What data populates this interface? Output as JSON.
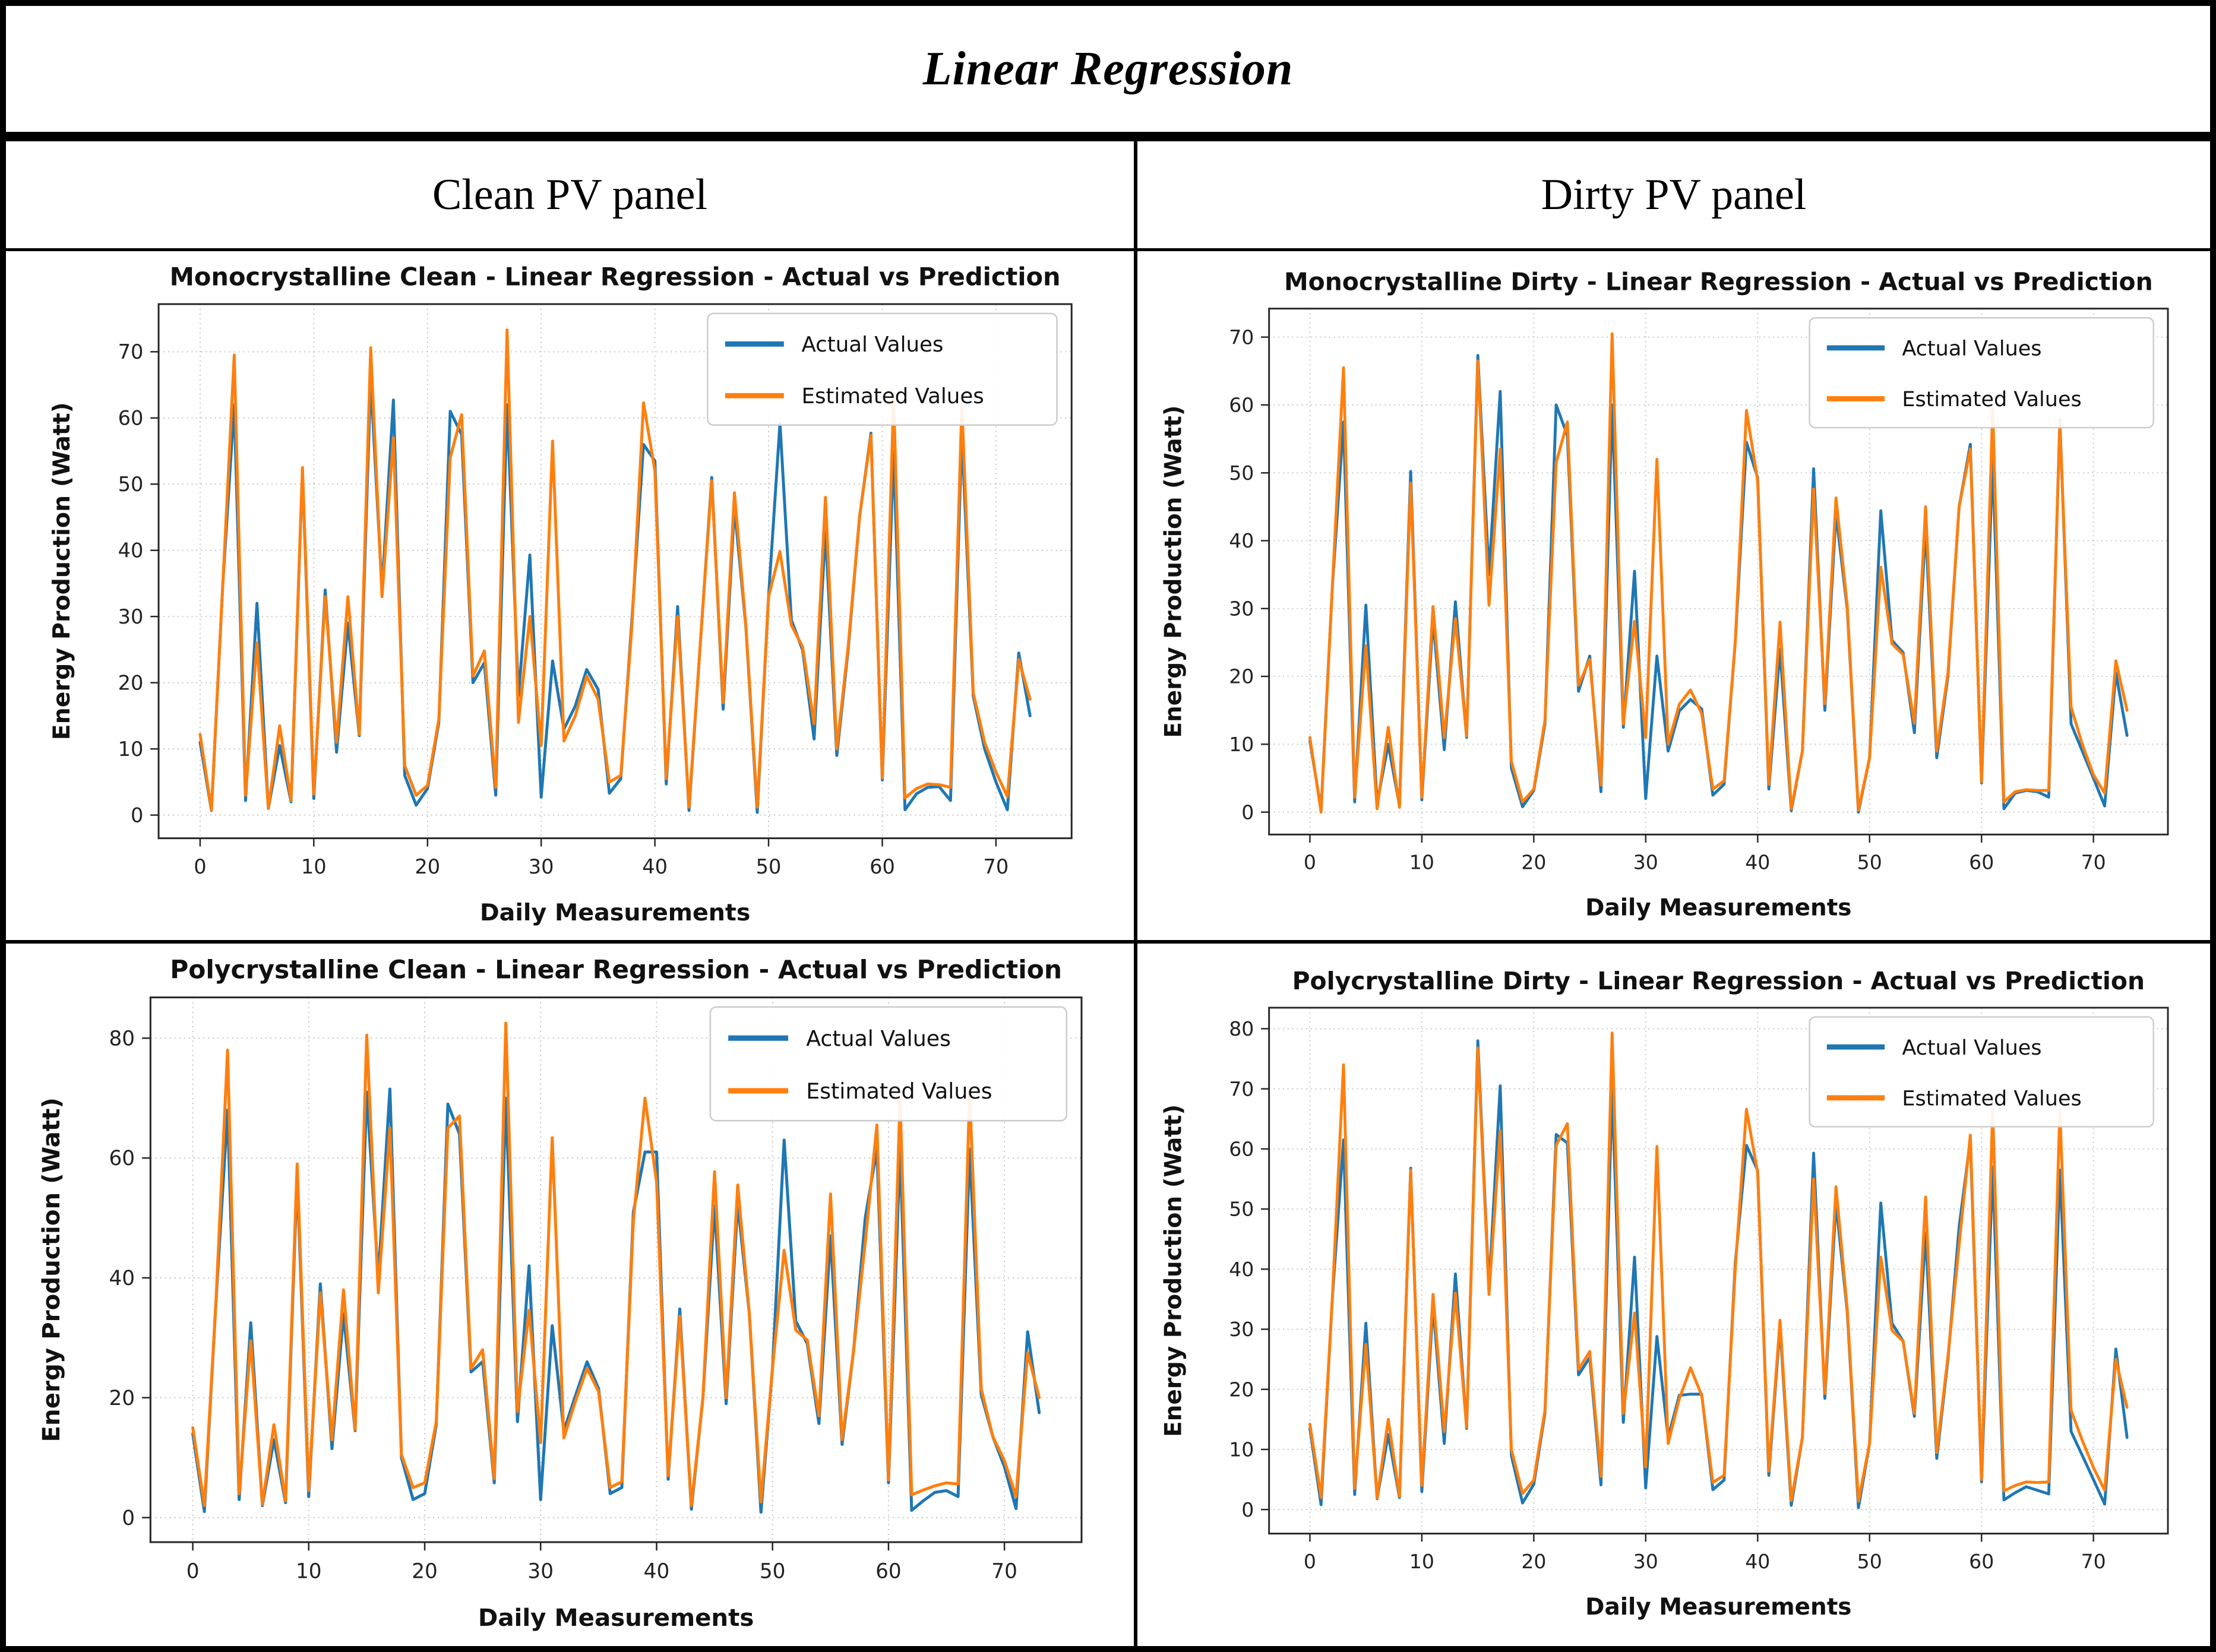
{
  "header": {
    "title": "Linear Regression"
  },
  "columns": {
    "left": "Clean PV panel",
    "right": "Dirty PV panel"
  },
  "colors": {
    "actual": "#1f77b4",
    "estimated": "#ff7f0e",
    "grid_line": "#c3c3c3",
    "axis": "#262626",
    "table_border": "#000000",
    "background": "#ffffff"
  },
  "chart_data": [
    {
      "type": "line",
      "panel": "Monocrystalline Clean",
      "title": "Monocrystalline Clean  - Linear Regression - Actual vs Prediction",
      "xlabel": "Daily Measurements",
      "ylabel": "Energy Production (Watt)",
      "legend_position": "upper right",
      "grid": true,
      "xlim": [
        -3.65,
        76.65
      ],
      "ylim": [
        -3.5,
        77.2
      ],
      "xticks": [
        0,
        10,
        20,
        30,
        40,
        50,
        60,
        70
      ],
      "yticks": [
        0,
        10,
        20,
        30,
        40,
        50,
        60,
        70
      ],
      "series": [
        {
          "name": "Actual Values",
          "color": "#1f77b4",
          "values": [
            11,
            0.7,
            35,
            62,
            2.2,
            32,
            1,
            10.5,
            2,
            52,
            2.5,
            34,
            9.5,
            29,
            12,
            66,
            34,
            62.7,
            6,
            1.5,
            4,
            14,
            61,
            57.5,
            20,
            23,
            3,
            62,
            18,
            39.3,
            2.7,
            23.3,
            13,
            16.5,
            22,
            19,
            3.3,
            5.5,
            30,
            56,
            53.5,
            4.7,
            31.5,
            0.7,
            26,
            51,
            16,
            46.5,
            28.5,
            0.4,
            33,
            59.2,
            29.5,
            24.9,
            11.5,
            43,
            9,
            25,
            45,
            57.7,
            5.3,
            55,
            0.8,
            3.2,
            4.2,
            4.3,
            2.2,
            57.7,
            18,
            10,
            5,
            0.8,
            24.5,
            15
          ]
        },
        {
          "name": "Estimated Values",
          "color": "#ff7f0e",
          "values": [
            12.2,
            0.8,
            35,
            69.5,
            3,
            26,
            1,
            13.5,
            2.2,
            52.5,
            3.2,
            33,
            11,
            33,
            12.2,
            70.6,
            33,
            57,
            7.5,
            3,
            4.5,
            14.5,
            54,
            60.5,
            21,
            24.8,
            4.2,
            73.3,
            14,
            30,
            10.5,
            56.5,
            11.2,
            15,
            21,
            17.5,
            5,
            6,
            29,
            62.3,
            52,
            5.5,
            30,
            1.2,
            26,
            50.5,
            17,
            48.7,
            28.7,
            1.2,
            33,
            39.8,
            28.7,
            25.4,
            13.8,
            48,
            10,
            25.5,
            45,
            57.4,
            5.6,
            63.2,
            2.6,
            4,
            4.7,
            4.6,
            4.2,
            62,
            18.5,
            11,
            6.5,
            2.8,
            23.5,
            17.5
          ]
        }
      ]
    },
    {
      "type": "line",
      "panel": "Monocrystalline Dirty",
      "title": "Monocrystalline Dirty - Linear Regression - Actual vs Prediction",
      "xlabel": "Daily Measurements",
      "ylabel": "Energy Production (Watt)",
      "legend_position": "upper right",
      "grid": true,
      "xlim": [
        -3.65,
        76.65
      ],
      "ylim": [
        -3.3,
        74.2
      ],
      "xticks": [
        0,
        10,
        20,
        30,
        40,
        50,
        60,
        70
      ],
      "yticks": [
        0,
        10,
        20,
        30,
        40,
        50,
        60,
        70
      ],
      "series": [
        {
          "name": "Actual Values",
          "color": "#1f77b4",
          "values": [
            10.5,
            0.4,
            33,
            57.5,
            1.5,
            30.5,
            1.3,
            10,
            1,
            50.2,
            1.8,
            28.5,
            9.2,
            31,
            11,
            67.3,
            35,
            62,
            6.5,
            0.8,
            3.2,
            13,
            60,
            55.5,
            17.8,
            23,
            3,
            60,
            12.5,
            35.5,
            2,
            23,
            9,
            14.9,
            16.6,
            15.2,
            2.5,
            4.1,
            25,
            54.5,
            49.3,
            3.4,
            24,
            0.2,
            9,
            50.6,
            15,
            44,
            30,
            0,
            8,
            44.4,
            25.3,
            23.5,
            11.7,
            42,
            8,
            20,
            45,
            54.2,
            4.3,
            52,
            0.5,
            2.8,
            3.2,
            3,
            2.2,
            57.8,
            13,
            9,
            5,
            0.9,
            20.5,
            11.3
          ]
        },
        {
          "name": "Estimated Values",
          "color": "#ff7f0e",
          "values": [
            11,
            0,
            33,
            65.5,
            2.2,
            24.5,
            0.5,
            12.5,
            0.7,
            48.5,
            2.2,
            30.3,
            11,
            28.5,
            11.2,
            66.5,
            30.5,
            53.5,
            7.5,
            1.5,
            3.4,
            13.5,
            51.5,
            57.5,
            18.7,
            22.5,
            4,
            70.5,
            13,
            28.1,
            11,
            52,
            10,
            15.9,
            18,
            14.5,
            3.4,
            4.6,
            25,
            59.2,
            48.8,
            4.1,
            28,
            0.5,
            9,
            47.6,
            16,
            46.3,
            30.5,
            0.3,
            8,
            36.1,
            24.8,
            23.2,
            13.1,
            45,
            9,
            20.5,
            45,
            53.5,
            4.5,
            59.5,
            1.5,
            3,
            3.3,
            3.2,
            3.2,
            57.3,
            15.5,
            10,
            5.5,
            2.8,
            22.3,
            15
          ]
        }
      ]
    },
    {
      "type": "line",
      "panel": "Polycrystalline Clean",
      "title": "Polycrystalline Clean - Linear Regression - Actual vs Prediction",
      "xlabel": "Daily Measurements",
      "ylabel": "Energy Production (Watt)",
      "legend_position": "upper right",
      "grid": true,
      "xlim": [
        -3.65,
        76.65
      ],
      "ylim": [
        -4.1,
        86.8
      ],
      "xticks": [
        0,
        10,
        20,
        30,
        40,
        50,
        60,
        70
      ],
      "yticks": [
        0,
        20,
        40,
        60,
        80
      ],
      "series": [
        {
          "name": "Actual Values",
          "color": "#1f77b4",
          "values": [
            14,
            1,
            36,
            68,
            3,
            32.5,
            2,
            13,
            2.5,
            57,
            3.5,
            39,
            11.5,
            34,
            14.5,
            71,
            40,
            71.5,
            10,
            3,
            4,
            15.5,
            69,
            64,
            24.3,
            26,
            5.8,
            70,
            16,
            42,
            3,
            32,
            14.5,
            20.3,
            26,
            21.5,
            4,
            5,
            51,
            61,
            61,
            6.4,
            34.8,
            1.4,
            20,
            52,
            19,
            52.5,
            34,
            0.9,
            25,
            63,
            32.8,
            29,
            15.7,
            47,
            12.2,
            28,
            50,
            61.5,
            5.8,
            61.5,
            1.2,
            2.8,
            4.2,
            4.5,
            3.5,
            61.5,
            20.5,
            13.5,
            8.5,
            1.5,
            31,
            17.5
          ]
        },
        {
          "name": "Estimated Values",
          "color": "#ff7f0e",
          "values": [
            15,
            2,
            36,
            78,
            4,
            29.5,
            2.2,
            15.5,
            2.8,
            59,
            4.5,
            37.5,
            13,
            38,
            14.7,
            80.5,
            37.5,
            65,
            10.5,
            5,
            5.8,
            16,
            65,
            67,
            24.9,
            28,
            6.5,
            82.5,
            17.7,
            34.6,
            12.5,
            63.4,
            13.3,
            19.4,
            24.9,
            21,
            5,
            6,
            49.5,
            70,
            56,
            7,
            33.6,
            2,
            20,
            57.7,
            20,
            55.5,
            34,
            2.6,
            25,
            44.6,
            31.3,
            29.6,
            17,
            54,
            13,
            28,
            46,
            65.5,
            6.3,
            70,
            3.8,
            4.6,
            5.3,
            5.8,
            5.6,
            71,
            21.5,
            13.5,
            9.5,
            3.5,
            27.5,
            20
          ]
        }
      ]
    },
    {
      "type": "line",
      "panel": "Polycrystalline Dirty",
      "title": "Polycrystalline Dirty - Linear Regression - Actual vs Prediction",
      "xlabel": "Daily Measurements",
      "ylabel": "Energy Production (Watt)",
      "legend_position": "upper right",
      "grid": true,
      "xlim": [
        -3.65,
        76.65
      ],
      "ylim": [
        -4.0,
        83.5
      ],
      "xticks": [
        0,
        10,
        20,
        30,
        40,
        50,
        60,
        70
      ],
      "yticks": [
        0,
        10,
        20,
        30,
        40,
        50,
        60,
        70,
        80
      ],
      "series": [
        {
          "name": "Actual Values",
          "color": "#1f77b4",
          "values": [
            13.5,
            0.8,
            35,
            61.5,
            2.5,
            31,
            1.8,
            12.5,
            2,
            56.8,
            3,
            34,
            11,
            39.2,
            13.5,
            78,
            36.8,
            70.5,
            9,
            1.1,
            4.2,
            16,
            62.4,
            61,
            22.4,
            25.3,
            4.1,
            70,
            14.5,
            42,
            3.6,
            28.8,
            12,
            19,
            19.2,
            19.2,
            3.3,
            4.9,
            41,
            60.6,
            56.4,
            5.7,
            30.5,
            0.7,
            12,
            59.3,
            18.5,
            51,
            33,
            0.3,
            11,
            51,
            31,
            28,
            15.5,
            46,
            8.5,
            25,
            47,
            61.5,
            4.6,
            57,
            1.6,
            2.8,
            3.8,
            3.2,
            2.6,
            56.5,
            13,
            9,
            5,
            0.9,
            26.7,
            12
          ]
        },
        {
          "name": "Estimated Values",
          "color": "#ff7f0e",
          "values": [
            14.2,
            2,
            35,
            74,
            3.5,
            27.5,
            1.9,
            15,
            2.2,
            56.5,
            4,
            35.8,
            13,
            36,
            13.7,
            76.8,
            35.8,
            63,
            10,
            2.7,
            4.9,
            16.5,
            60.6,
            64.2,
            23.3,
            26.3,
            5.5,
            79.3,
            16,
            32.7,
            7.1,
            60.4,
            11,
            18.4,
            23.6,
            19,
            4.5,
            5.7,
            40,
            66.6,
            56,
            6.4,
            31.5,
            1.5,
            12,
            55,
            19.3,
            53.7,
            33.5,
            1.4,
            11,
            42,
            29.8,
            28,
            16,
            52,
            9.5,
            25.5,
            44,
            62.3,
            5,
            66.5,
            3.1,
            4,
            4.6,
            4.5,
            4.6,
            66.5,
            16.5,
            11.5,
            7,
            3.2,
            25,
            17
          ]
        }
      ]
    }
  ]
}
